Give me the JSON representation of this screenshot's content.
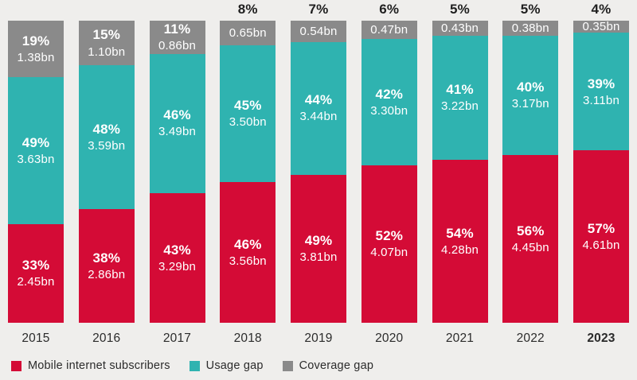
{
  "palette": {
    "background": "#efeeec",
    "subscribers_red": "#d40b36",
    "usage_teal": "#2fb3b0",
    "coverage_gray": "#8a8a8a",
    "text_dark": "#1f1f1f",
    "text_light": "#ffffff"
  },
  "chart_data": {
    "type": "bar",
    "stacked": true,
    "title": "",
    "xlabel": "",
    "ylabel": "",
    "unit": "bn",
    "categories": [
      "2015",
      "2016",
      "2017",
      "2018",
      "2019",
      "2020",
      "2021",
      "2022",
      "2023"
    ],
    "series": [
      {
        "key": "mobile-internet-subscribers",
        "name": "Mobile internet subscribers",
        "color": "#d40b36",
        "pct": [
          33,
          38,
          43,
          46,
          49,
          52,
          54,
          56,
          57
        ],
        "values": [
          "2.45bn",
          "2.86bn",
          "3.29bn",
          "3.56bn",
          "3.81bn",
          "4.07bn",
          "4.28bn",
          "4.45bn",
          "4.61bn"
        ]
      },
      {
        "key": "usage-gap",
        "name": "Usage gap",
        "color": "#2fb3b0",
        "pct": [
          49,
          48,
          46,
          45,
          44,
          42,
          41,
          40,
          39
        ],
        "values": [
          "3.63bn",
          "3.59bn",
          "3.49bn",
          "3.50bn",
          "3.44bn",
          "3.30bn",
          "3.22bn",
          "3.17bn",
          "3.11bn"
        ]
      },
      {
        "key": "coverage-gap",
        "name": "Coverage gap",
        "color": "#8a8a8a",
        "pct": [
          19,
          15,
          11,
          8,
          7,
          6,
          5,
          5,
          4
        ],
        "values": [
          "1.38bn",
          "1.10bn",
          "0.86bn",
          "0.65bn",
          "0.54bn",
          "0.47bn",
          "0.43bn",
          "0.38bn",
          "0.35bn"
        ]
      }
    ],
    "layout": {
      "legend_position": "bottom-left",
      "grid": false,
      "axes_hidden": true,
      "segment_order_top_to_bottom": [
        "coverage-gap",
        "usage-gap",
        "mobile-internet-subscribers"
      ],
      "coverage_pct_above_bar": [
        false,
        false,
        false,
        true,
        true,
        true,
        true,
        true,
        true
      ],
      "bold_category": "2023"
    }
  }
}
